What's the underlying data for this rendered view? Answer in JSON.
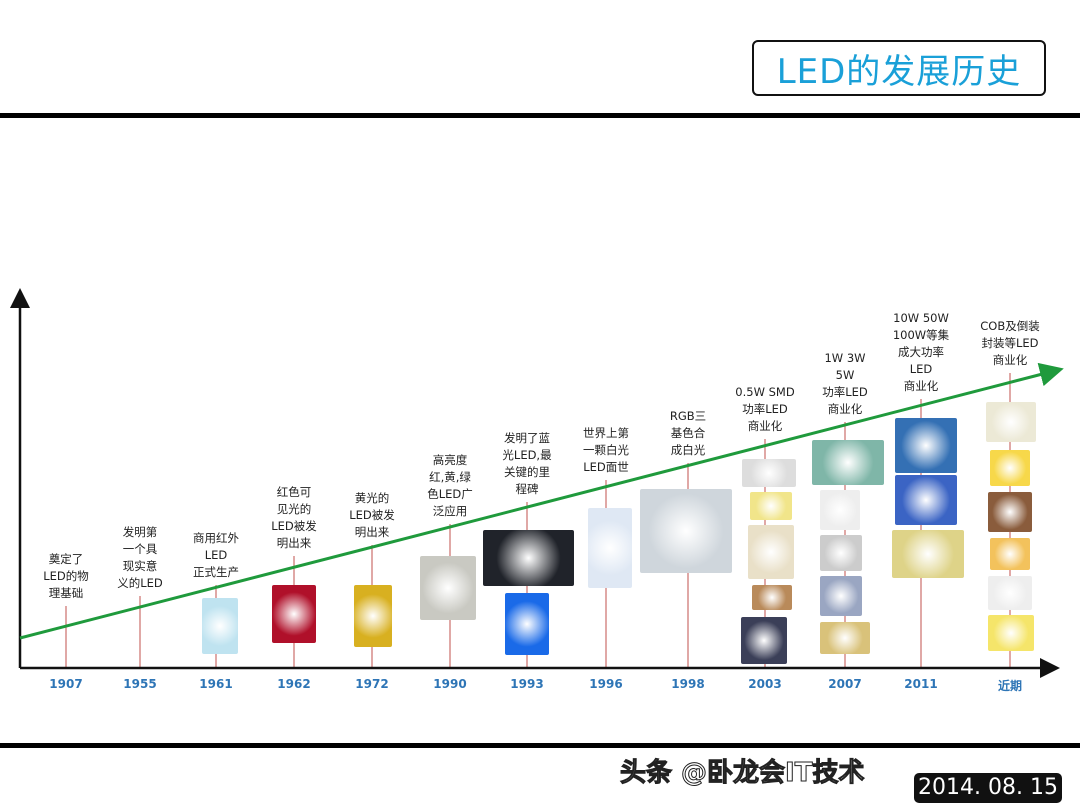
{
  "title": "LED的发展历史",
  "colors": {
    "title": "#1aa0d8",
    "trend_line": "#1f9a3c",
    "year": "#2e75b6",
    "drop_line": "#c0504d"
  },
  "events": [
    {
      "year": "1907",
      "text": "奠定了\nLED的物\n理基础"
    },
    {
      "year": "1955",
      "text": "发明第\n一个具\n现实意\n义的LED"
    },
    {
      "year": "1961",
      "text": "商用红外\nLED\n正式生产"
    },
    {
      "year": "1962",
      "text": "红色可\n见光的\nLED被发\n明出来"
    },
    {
      "year": "1972",
      "text": "黄光的\nLED被发\n明出来"
    },
    {
      "year": "1990",
      "text": "高亮度\n红,黄,绿\n色LED广\n泛应用"
    },
    {
      "year": "1993",
      "text": "发明了蓝\n光LED,最\n关键的里\n程碑"
    },
    {
      "year": "1996",
      "text": "世界上第\n一颗白光\nLED面世"
    },
    {
      "year": "1998",
      "text": "RGB三\n基色合\n成白光"
    },
    {
      "year": "2003",
      "text": "0.5W SMD\n功率LED\n商业化"
    },
    {
      "year": "2007",
      "text": "1W 3W\n5W\n功率LED\n商业化"
    },
    {
      "year": "2011",
      "text": "10W 50W\n100W等集\n成大功率\nLED\n商业化"
    },
    {
      "year": "近期",
      "text": "COB及倒装\n封装等LED\n商业化"
    }
  ],
  "watermark": "头条 @卧龙会IT技术",
  "date": "2014. 08. 15"
}
